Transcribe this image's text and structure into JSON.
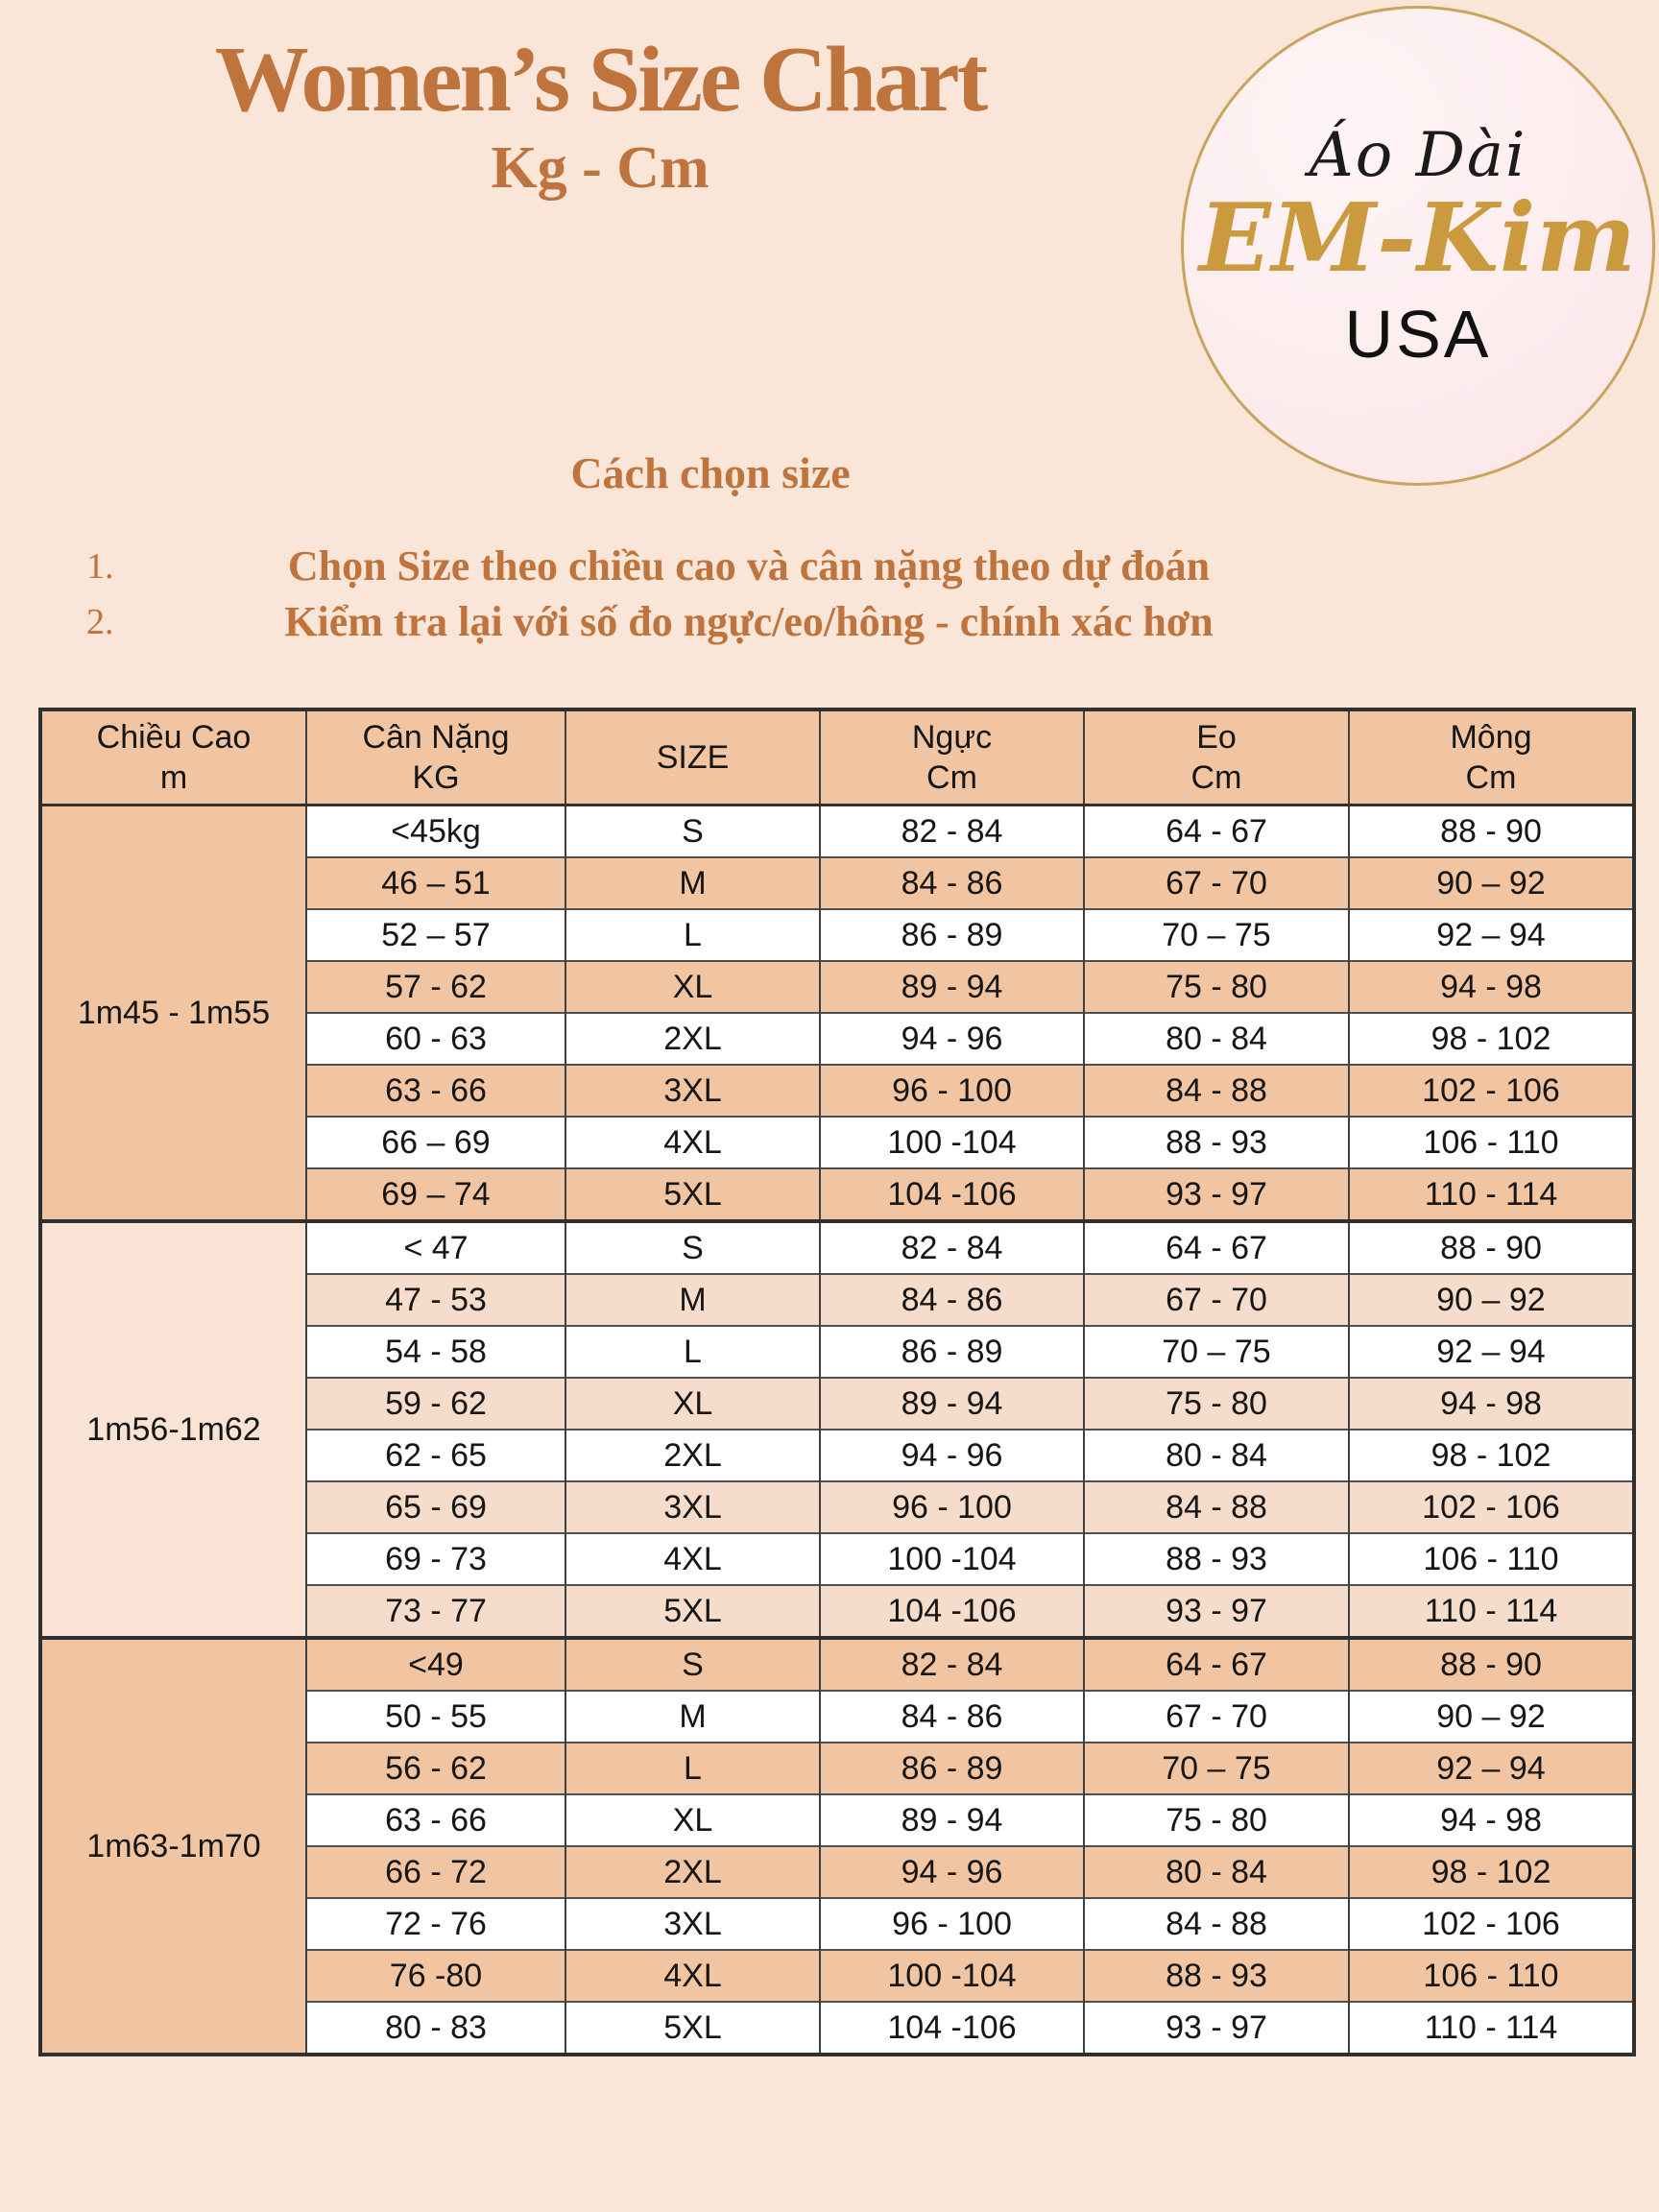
{
  "header": {
    "title": "Women’s Size Chart",
    "subtitle": "Kg - Cm"
  },
  "logo": {
    "line1": "Áo Dài",
    "line2": "EM-Kim",
    "line3": "USA"
  },
  "instructions": {
    "heading": "Cách chọn size",
    "items": [
      {
        "num": "1.",
        "text": "Chọn Size theo chiều cao và cân nặng theo dự đoán"
      },
      {
        "num": "2.",
        "text": "Kiểm tra lại với số đo ngực/eo/hông - chính xác hơn"
      }
    ]
  },
  "table": {
    "headers": [
      {
        "line1": "Chiều Cao",
        "line2": "m"
      },
      {
        "line1": "Cân Nặng",
        "line2": "KG"
      },
      {
        "line1": "SIZE",
        "line2": ""
      },
      {
        "line1": "Ngực",
        "line2": "Cm"
      },
      {
        "line1": "Eo",
        "line2": "Cm"
      },
      {
        "line1": "Mông",
        "line2": "Cm"
      }
    ],
    "groups": [
      {
        "height": "1m45 - 1m55",
        "rows": [
          [
            "<45kg",
            "S",
            "82 - 84",
            "64 - 67",
            "88 - 90"
          ],
          [
            "46 – 51",
            "M",
            "84 - 86",
            "67 - 70",
            "90 – 92"
          ],
          [
            "52 – 57",
            "L",
            "86 - 89",
            "70 – 75",
            "92 – 94"
          ],
          [
            "57 - 62",
            "XL",
            "89 - 94",
            "75 - 80",
            "94 - 98"
          ],
          [
            "60 - 63",
            "2XL",
            "94 - 96",
            "80 - 84",
            "98 - 102"
          ],
          [
            "63 - 66",
            "3XL",
            "96 - 100",
            "84 - 88",
            "102 - 106"
          ],
          [
            "66 – 69",
            "4XL",
            "100 -104",
            "88 - 93",
            "106 - 110"
          ],
          [
            "69 – 74",
            "5XL",
            "104 -106",
            "93 - 97",
            "110 - 114"
          ]
        ]
      },
      {
        "height": "1m56-1m62",
        "rows": [
          [
            "< 47",
            "S",
            "82 - 84",
            "64 - 67",
            "88 - 90"
          ],
          [
            "47 -  53",
            "M",
            "84 - 86",
            "67 - 70",
            "90 – 92"
          ],
          [
            "54 - 58",
            "L",
            "86 - 89",
            "70 – 75",
            "92 – 94"
          ],
          [
            "59 - 62",
            "XL",
            "89 - 94",
            "75 - 80",
            "94 - 98"
          ],
          [
            "62 - 65",
            "2XL",
            "94 - 96",
            "80 - 84",
            "98 - 102"
          ],
          [
            "65 - 69",
            "3XL",
            "96 - 100",
            "84 - 88",
            "102 - 106"
          ],
          [
            "69 - 73",
            "4XL",
            "100 -104",
            "88 - 93",
            "106 - 110"
          ],
          [
            "73 - 77",
            "5XL",
            "104 -106",
            "93 - 97",
            "110 - 114"
          ]
        ]
      },
      {
        "height": "1m63-1m70",
        "rows": [
          [
            "<49",
            "S",
            "82 - 84",
            "64 - 67",
            "88 - 90"
          ],
          [
            "50 - 55",
            "M",
            "84 - 86",
            "67 - 70",
            "90 – 92"
          ],
          [
            "56 - 62",
            "L",
            "86 - 89",
            "70 – 75",
            "92 – 94"
          ],
          [
            "63 - 66",
            "XL",
            "89 - 94",
            "75 - 80",
            "94 - 98"
          ],
          [
            "66 - 72",
            "2XL",
            "94 - 96",
            "80 - 84",
            "98 - 102"
          ],
          [
            "72 - 76",
            "3XL",
            "96 - 100",
            "84 - 88",
            "102 - 106"
          ],
          [
            "76 -80",
            "4XL",
            "100 -104",
            "88 - 93",
            "106 - 110"
          ],
          [
            "80 - 83",
            "5XL",
            "104 -106",
            "93 - 97",
            "110 - 114"
          ]
        ]
      }
    ]
  },
  "colors": {
    "page_background": "#f9e6d8",
    "accent_orange": "#c0743d",
    "salmon_fill": "#f2c5a2",
    "light_salmon_fill": "#f6dcca",
    "group2_height_fill": "#f8e3d4",
    "logo_gold": "#cc9a3e",
    "border_dark": "#303030"
  }
}
